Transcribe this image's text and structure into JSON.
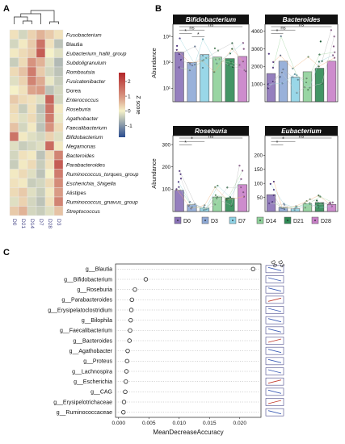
{
  "panel_labels": {
    "a": "A",
    "b": "B",
    "c": "C"
  },
  "colors": {
    "D0": "#8a72b8",
    "D3": "#8ea9d6",
    "D7": "#8fd3e6",
    "D14": "#8ed19a",
    "D21": "#2f8a55",
    "D28": "#c880c8",
    "heat_low": "#2b4d8f",
    "heat_mid": "#f5f1c8",
    "heat_high": "#b3262a"
  },
  "chart_data": [
    {
      "type": "heatmap",
      "rows": [
        "Fusobacterium",
        "Blautia",
        "Eubacterium_hallii_group",
        "Subdoligranulum",
        "Romboutsia",
        "Fusicatenibacter",
        "Dorea",
        "Enterococcus",
        "Roseburia",
        "Agathobacter",
        "Faecalibacterium",
        "Bifidobacterium",
        "Megamonas",
        "Bacteroides",
        "Parabacteroides",
        "Ruminococcus_torques_group",
        "Escherichia_Shigella",
        "Alistipes",
        "Ruminococcus_gnavus_group",
        "Streptococcus"
      ],
      "italic_rows": [
        true,
        false,
        true,
        true,
        true,
        true,
        false,
        true,
        true,
        true,
        true,
        true,
        true,
        true,
        true,
        true,
        true,
        false,
        true,
        true
      ],
      "columns": [
        "D0",
        "D21",
        "D14",
        "D7",
        "D28",
        "D3"
      ],
      "values": [
        [
          0.2,
          -0.3,
          0.4,
          0.8,
          0.5,
          0.2
        ],
        [
          -0.3,
          0.1,
          0.5,
          1.6,
          0.2,
          -0.5
        ],
        [
          0.1,
          0.3,
          0.5,
          1.9,
          0.0,
          -0.2
        ],
        [
          -0.4,
          0.3,
          1.2,
          0.8,
          -0.2,
          -0.6
        ],
        [
          0.3,
          0.6,
          1.5,
          0.5,
          -0.3,
          -0.5
        ],
        [
          -0.2,
          0.4,
          1.4,
          0.9,
          -0.1,
          -0.4
        ],
        [
          0.0,
          0.2,
          1.0,
          1.1,
          -0.5,
          -0.3
        ],
        [
          0.5,
          0.3,
          0.2,
          -0.2,
          1.8,
          -0.3
        ],
        [
          0.3,
          -0.4,
          0.2,
          -0.5,
          1.6,
          0.1
        ],
        [
          0.2,
          -0.2,
          0.3,
          -0.4,
          1.5,
          -0.1
        ],
        [
          0.6,
          -0.3,
          0.1,
          -0.5,
          1.2,
          0.3
        ],
        [
          1.6,
          0.1,
          -0.2,
          -0.3,
          0.4,
          -0.2
        ],
        [
          -0.2,
          -0.4,
          -0.3,
          -0.2,
          1.7,
          0.1
        ],
        [
          -0.3,
          0.2,
          0.1,
          -0.5,
          0.3,
          1.4
        ],
        [
          -0.4,
          0.1,
          0.3,
          -0.4,
          0.2,
          1.9
        ],
        [
          0.1,
          0.3,
          -0.2,
          -0.5,
          0.0,
          1.5
        ],
        [
          0.2,
          0.1,
          -0.4,
          -0.3,
          0.3,
          1.3
        ],
        [
          0.3,
          0.5,
          -0.2,
          -0.4,
          0.1,
          1.1
        ],
        [
          -0.2,
          0.4,
          -0.3,
          -0.5,
          0.2,
          1.4
        ],
        [
          0.5,
          0.8,
          -0.3,
          -0.4,
          -0.2,
          0.6
        ]
      ],
      "colorbar_label": "Z score",
      "colorbar_ticks": [
        2,
        1,
        0,
        -1
      ],
      "value_range": [
        -1.8,
        2.6
      ]
    },
    {
      "type": "bar",
      "title": "Bifidobacterium",
      "ylabel": "Abundance",
      "scale": "log",
      "ylim": [
        3,
        3000
      ],
      "yticks": [
        10,
        100,
        1000
      ],
      "ytick_labels": [
        "10¹",
        "10²",
        "10³"
      ],
      "categories": [
        "D0",
        "D3",
        "D7",
        "D14",
        "D21",
        "D28"
      ],
      "values": [
        250,
        100,
        200,
        160,
        140,
        170
      ],
      "significance": [
        {
          "groups": [
            "D0",
            "D28"
          ],
          "label": "ns"
        },
        {
          "groups": [
            "D0",
            "D7"
          ],
          "label": "ns"
        },
        {
          "groups": [
            "D0",
            "D3"
          ],
          "label": "*"
        },
        {
          "groups": [
            "D3",
            "D7"
          ],
          "label": "*"
        }
      ]
    },
    {
      "type": "bar",
      "title": "Bacteroides",
      "scale": "linear",
      "ylim": [
        0,
        4400
      ],
      "yticks": [
        1000,
        2000,
        3000,
        4000
      ],
      "ytick_labels": [
        "1000",
        "2000",
        "3000",
        "4000"
      ],
      "categories": [
        "D0",
        "D3",
        "D7",
        "D14",
        "D21",
        "D28"
      ],
      "values": [
        1600,
        2300,
        1400,
        1700,
        1900,
        2300
      ],
      "significance": [
        {
          "groups": [
            "D0",
            "D28"
          ],
          "label": "ns"
        },
        {
          "groups": [
            "D0",
            "D7"
          ],
          "label": "ns"
        },
        {
          "groups": [
            "D0",
            "D3"
          ],
          "label": "*"
        }
      ]
    },
    {
      "type": "bar",
      "title": "Roseburia",
      "ylabel": "Abundance",
      "scale": "linear",
      "ylim": [
        0,
        340
      ],
      "yticks": [
        100,
        200,
        300
      ],
      "ytick_labels": [
        "100",
        "200",
        "300"
      ],
      "categories": [
        "D0",
        "D3",
        "D7",
        "D14",
        "D21",
        "D28"
      ],
      "values": [
        95,
        30,
        15,
        65,
        60,
        120
      ],
      "significance": [
        {
          "groups": [
            "D0",
            "D28"
          ],
          "label": "ns"
        },
        {
          "groups": [
            "D0",
            "D7"
          ],
          "label": "*"
        },
        {
          "groups": [
            "D0",
            "D3"
          ],
          "label": "*"
        }
      ]
    },
    {
      "type": "bar",
      "title": "Eubacterium",
      "scale": "linear",
      "ylim": [
        0,
        270
      ],
      "yticks": [
        50,
        100,
        150,
        200
      ],
      "ytick_labels": [
        "50",
        "100",
        "150",
        "200"
      ],
      "categories": [
        "D0",
        "D3",
        "D7",
        "D14",
        "D21",
        "D28"
      ],
      "values": [
        60,
        15,
        10,
        28,
        32,
        25
      ],
      "significance": [
        {
          "groups": [
            "D0",
            "D28"
          ],
          "label": "ns"
        },
        {
          "groups": [
            "D0",
            "D7"
          ],
          "label": "*"
        },
        {
          "groups": [
            "D0",
            "D3"
          ],
          "label": "*"
        }
      ]
    },
    {
      "type": "scatter",
      "xlabel": "MeanDecreaseAccuracy",
      "xlim": [
        -0.0005,
        0.0235
      ],
      "xticks": [
        0.0,
        0.005,
        0.01,
        0.015,
        0.02
      ],
      "xtick_labels": [
        "0.000",
        "0.005",
        "0.010",
        "0.015",
        "0.020"
      ],
      "categories": [
        "g__Blautia",
        "g__Bifidobacterium",
        "g__Roseburia",
        "g__Parabacteroides",
        "g__Erysipelatoclostridium",
        "g__Bilophila",
        "g__Faecalibacterium",
        "g__Bacteroides",
        "g__Agathobacter",
        "g__Proteus",
        "g__Lachnospira",
        "g__Escherichia",
        "g__CAG",
        "g__Erysipelotrichaceae",
        "g__Ruminococcaceae"
      ],
      "values": [
        0.0222,
        0.0045,
        0.0027,
        0.0022,
        0.0021,
        0.002,
        0.0019,
        0.0018,
        0.0015,
        0.0014,
        0.0013,
        0.0012,
        0.0011,
        0.0009,
        0.0008
      ],
      "mini_columns": [
        "D0",
        "D3"
      ],
      "mini_trend": [
        "up",
        "up",
        "up",
        "down",
        "up",
        "up",
        "up",
        "down",
        "up",
        "up",
        "up",
        "down",
        "up",
        "down",
        "up"
      ]
    }
  ],
  "legend": [
    "D0",
    "D3",
    "D7",
    "D14",
    "D21",
    "D28"
  ]
}
